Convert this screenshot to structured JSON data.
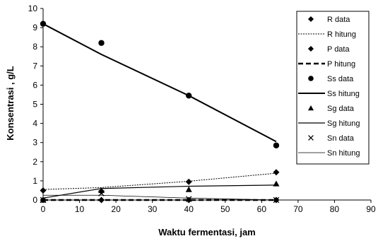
{
  "chart_data": {
    "type": "scatter",
    "xlabel": "Waktu fermentasi, jam",
    "ylabel": "Konsentrasi , g/L",
    "xlim": [
      0,
      90
    ],
    "ylim": [
      0,
      10
    ],
    "xticks": [
      0,
      10,
      20,
      30,
      40,
      50,
      60,
      70,
      80,
      90
    ],
    "yticks": [
      0,
      1,
      2,
      3,
      4,
      5,
      6,
      7,
      8,
      9,
      10
    ],
    "grid": false,
    "legend_position": "right",
    "series": [
      {
        "name": "R data",
        "kind": "points",
        "marker": "diamond",
        "x": [
          0,
          16,
          40,
          64
        ],
        "y": [
          0.5,
          0.45,
          0.95,
          1.45
        ]
      },
      {
        "name": "R hitung",
        "kind": "line",
        "dash": "dotted",
        "width": 1,
        "x": [
          0,
          16,
          40,
          64
        ],
        "y": [
          0.55,
          0.65,
          0.98,
          1.4
        ]
      },
      {
        "name": "P data",
        "kind": "points",
        "marker": "diamond",
        "x": [
          0,
          16,
          40,
          64
        ],
        "y": [
          0,
          0,
          0,
          0
        ]
      },
      {
        "name": "P hitung",
        "kind": "line",
        "dash": "dashed",
        "width": 2.6,
        "x": [
          0,
          16,
          40,
          64
        ],
        "y": [
          0,
          0,
          0,
          0
        ]
      },
      {
        "name": "Ss data",
        "kind": "points",
        "marker": "circle",
        "x": [
          0,
          16,
          40,
          64
        ],
        "y": [
          9.2,
          8.2,
          5.45,
          2.85
        ]
      },
      {
        "name": "Ss hitung",
        "kind": "line",
        "dash": "solid",
        "width": 2,
        "x": [
          0,
          16,
          40,
          64
        ],
        "y": [
          9.2,
          7.6,
          5.45,
          3.05
        ]
      },
      {
        "name": "Sg data",
        "kind": "points",
        "marker": "triangle",
        "x": [
          0,
          16,
          40,
          64
        ],
        "y": [
          0,
          0.5,
          0.55,
          0.85
        ]
      },
      {
        "name": "Sg hitung",
        "kind": "line",
        "dash": "solid",
        "width": 1.2,
        "x": [
          0,
          16,
          40,
          64
        ],
        "y": [
          0.1,
          0.6,
          0.72,
          0.78
        ]
      },
      {
        "name": "Sn data",
        "kind": "points",
        "marker": "x",
        "x": [
          0,
          16,
          40,
          64
        ],
        "y": [
          0,
          0.35,
          0.05,
          0
        ]
      },
      {
        "name": "Sn hitung",
        "kind": "line",
        "dash": "solid",
        "width": 0.8,
        "x": [
          0,
          16,
          40,
          64
        ],
        "y": [
          0.25,
          0.25,
          0.1,
          0
        ]
      }
    ]
  }
}
